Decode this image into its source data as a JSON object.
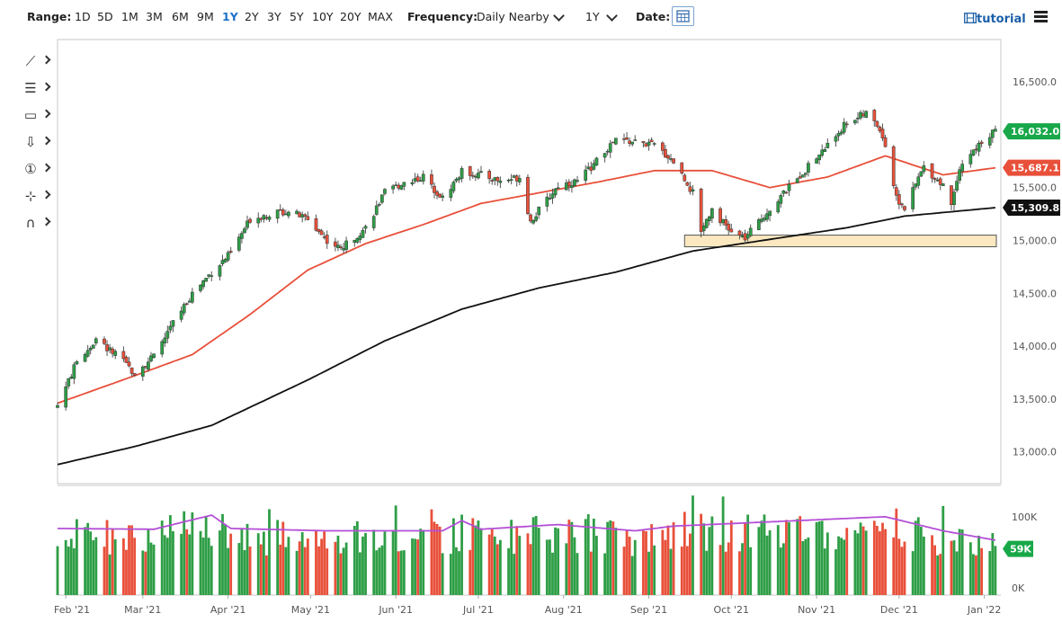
{
  "toolbar": {
    "range_label": "Range:",
    "ranges": [
      "1D",
      "5D",
      "1M",
      "3M",
      "6M",
      "9M",
      "1Y",
      "2Y",
      "3Y",
      "5Y",
      "10Y",
      "20Y",
      "MAX"
    ],
    "active_range": "1Y",
    "frequency_label": "Frequency:",
    "frequency_value": "Daily Nearby",
    "period_value": "1Y",
    "date_label": "Date:",
    "tutorial_label": "tutorial"
  },
  "tools": [
    {
      "name": "line-tool-icon",
      "glyph": "⟋"
    },
    {
      "name": "fibonacci-tool-icon",
      "glyph": "☰"
    },
    {
      "name": "rectangle-tool-icon",
      "glyph": "▭"
    },
    {
      "name": "arrow-down-tool-icon",
      "glyph": "⇩"
    },
    {
      "name": "number-marker-tool-icon",
      "glyph": "①"
    },
    {
      "name": "measure-tool-icon",
      "glyph": "⊹"
    },
    {
      "name": "magnet-tool-icon",
      "glyph": "∩"
    }
  ],
  "colors": {
    "up": "#2e9e46",
    "down": "#e8503a",
    "ma_fast": "#e8503a",
    "ma_slow": "#111111",
    "volume_avg": "#b44fd6",
    "support_zone": "#fbe8c0",
    "price_badge": "#18a84a"
  },
  "chart_data": [
    {
      "type": "candlestick",
      "x_axis": {
        "labels": [
          "Feb '21",
          "Mar '21",
          "Apr '21",
          "May '21",
          "Jun '21",
          "Jul '21",
          "Aug '21",
          "Sep '21",
          "Oct '21",
          "Nov '21",
          "Dec '21",
          "Jan '22"
        ],
        "range": [
          "2021-01-29",
          "2022-01-07"
        ]
      },
      "y_axis": {
        "ticks": [
          13000,
          13500,
          14000,
          14500,
          15000,
          15500,
          16000,
          16500
        ],
        "tick_labels": [
          "13,000.0",
          "13,500.0",
          "14,000.0",
          "14,500.0",
          "15,000.0",
          "15,500.0",
          "16,000.0",
          "16,500.0"
        ],
        "range": [
          12700,
          16900
        ],
        "position": "right"
      },
      "close_anchors": [
        [
          "2021-01-29",
          13440
        ],
        [
          "2021-02-05",
          13850
        ],
        [
          "2021-02-12",
          14060
        ],
        [
          "2021-02-19",
          13920
        ],
        [
          "2021-02-26",
          13750
        ],
        [
          "2021-03-05",
          13900
        ],
        [
          "2021-03-12",
          14220
        ],
        [
          "2021-03-19",
          14500
        ],
        [
          "2021-03-26",
          14700
        ],
        [
          "2021-04-02",
          14880
        ],
        [
          "2021-04-09",
          15200
        ],
        [
          "2021-04-16",
          15250
        ],
        [
          "2021-04-23",
          15280
        ],
        [
          "2021-04-30",
          15200
        ],
        [
          "2021-05-07",
          15000
        ],
        [
          "2021-05-12",
          14920
        ],
        [
          "2021-05-21",
          15120
        ],
        [
          "2021-05-28",
          15450
        ],
        [
          "2021-06-04",
          15550
        ],
        [
          "2021-06-11",
          15600
        ],
        [
          "2021-06-18",
          15400
        ],
        [
          "2021-06-25",
          15650
        ],
        [
          "2021-07-02",
          15620
        ],
        [
          "2021-07-09",
          15560
        ],
        [
          "2021-07-16",
          15600
        ],
        [
          "2021-07-20",
          15180
        ],
        [
          "2021-07-30",
          15520
        ],
        [
          "2021-08-06",
          15560
        ],
        [
          "2021-08-13",
          15750
        ],
        [
          "2021-08-20",
          15950
        ],
        [
          "2021-08-27",
          15930
        ],
        [
          "2021-09-03",
          15900
        ],
        [
          "2021-09-10",
          15750
        ],
        [
          "2021-09-17",
          15450
        ],
        [
          "2021-09-20",
          15100
        ],
        [
          "2021-09-24",
          15300
        ],
        [
          "2021-10-01",
          15070
        ],
        [
          "2021-10-06",
          15020
        ],
        [
          "2021-10-15",
          15300
        ],
        [
          "2021-10-22",
          15500
        ],
        [
          "2021-10-29",
          15700
        ],
        [
          "2021-11-05",
          15900
        ],
        [
          "2021-11-12",
          16120
        ],
        [
          "2021-11-19",
          16200
        ],
        [
          "2021-11-24",
          16060
        ],
        [
          "2021-11-26",
          15900
        ],
        [
          "2021-11-30",
          15400
        ],
        [
          "2021-12-03",
          15300
        ],
        [
          "2021-12-10",
          15700
        ],
        [
          "2021-12-17",
          15520
        ],
        [
          "2021-12-20",
          15350
        ],
        [
          "2021-12-23",
          15700
        ],
        [
          "2021-12-29",
          15870
        ],
        [
          "2021-12-31",
          15930
        ],
        [
          "2022-01-05",
          16032
        ]
      ],
      "overlays": [
        {
          "kind": "ma_fast",
          "anchors": [
            [
              "2021-01-29",
              13460
            ],
            [
              "2021-02-26",
              13720
            ],
            [
              "2021-03-19",
              13920
            ],
            [
              "2021-04-09",
              14300
            ],
            [
              "2021-04-30",
              14720
            ],
            [
              "2021-05-21",
              14970
            ],
            [
              "2021-06-11",
              15150
            ],
            [
              "2021-07-02",
              15350
            ],
            [
              "2021-07-23",
              15450
            ],
            [
              "2021-08-13",
              15550
            ],
            [
              "2021-09-03",
              15660
            ],
            [
              "2021-09-24",
              15660
            ],
            [
              "2021-10-15",
              15500
            ],
            [
              "2021-11-05",
              15600
            ],
            [
              "2021-11-26",
              15800
            ],
            [
              "2021-12-17",
              15620
            ],
            [
              "2022-01-05",
              15687
            ]
          ]
        },
        {
          "kind": "ma_slow",
          "anchors": [
            [
              "2021-01-29",
              12880
            ],
            [
              "2021-02-26",
              13050
            ],
            [
              "2021-03-26",
              13250
            ],
            [
              "2021-04-30",
              13680
            ],
            [
              "2021-05-28",
              14050
            ],
            [
              "2021-06-25",
              14350
            ],
            [
              "2021-07-23",
              14550
            ],
            [
              "2021-08-20",
              14700
            ],
            [
              "2021-09-17",
              14900
            ],
            [
              "2021-10-15",
              15010
            ],
            [
              "2021-11-12",
              15120
            ],
            [
              "2021-12-03",
              15230
            ],
            [
              "2022-01-05",
              15310
            ]
          ]
        }
      ],
      "support_zone": {
        "from": "2021-09-14",
        "to": "2022-01-10",
        "low": 14940,
        "high": 15050
      },
      "last_price_labels": [
        {
          "kind": "close",
          "value": 16032.0,
          "label": "16,032.0"
        },
        {
          "kind": "ma_fast",
          "value": 15687.1,
          "label": "15,687.1"
        },
        {
          "kind": "ma_slow",
          "value": 15309.8,
          "label": "15,309.8"
        }
      ]
    },
    {
      "type": "bar",
      "title": "",
      "y_axis": {
        "ticks": [
          0,
          100000
        ],
        "tick_labels": [
          "0K",
          "100K"
        ],
        "range": [
          0,
          140000
        ],
        "position": "right"
      },
      "volume_avg_anchors": [
        [
          "2021-01-29",
          85000
        ],
        [
          "2021-03-05",
          84000
        ],
        [
          "2021-03-26",
          102000
        ],
        [
          "2021-04-02",
          85000
        ],
        [
          "2021-05-07",
          82000
        ],
        [
          "2021-06-18",
          82000
        ],
        [
          "2021-06-25",
          95000
        ],
        [
          "2021-07-02",
          84000
        ],
        [
          "2021-07-30",
          90000
        ],
        [
          "2021-08-27",
          82000
        ],
        [
          "2021-09-10",
          88000
        ],
        [
          "2021-11-26",
          100000
        ],
        [
          "2021-12-17",
          82000
        ],
        [
          "2022-01-05",
          70000
        ]
      ],
      "last_value_label": "59K",
      "last_value": 59000
    }
  ]
}
